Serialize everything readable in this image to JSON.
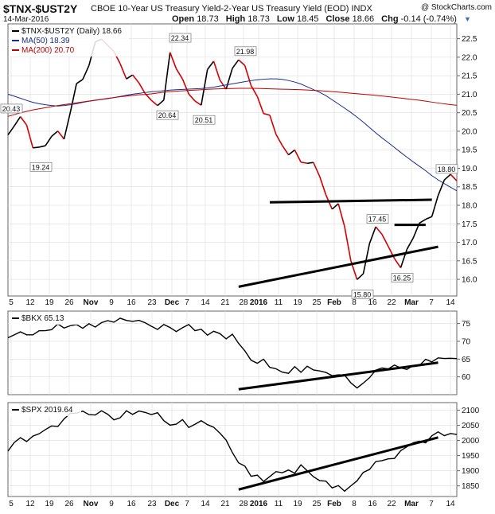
{
  "header": {
    "title": "$TNX-$UST2Y",
    "description": "CBOE 10-Year US Treasury Yield-2-Year US Treasury Yield (EOD)",
    "index_tag": "INDX",
    "date": "14-Mar-2016",
    "watermark": "@ StockCharts.com",
    "ohlc": [
      {
        "label": "Open",
        "value": "18.73"
      },
      {
        "label": "High",
        "value": "18.73"
      },
      {
        "label": "Low",
        "value": "18.45"
      },
      {
        "label": "Close",
        "value": "18.66"
      },
      {
        "label": "Chg",
        "value": "-0.14 (-0.74%)"
      }
    ]
  },
  "colors": {
    "price": "#000000",
    "down": "#d40000",
    "ma50": "#1a2c8a",
    "ma200": "#c00000",
    "border": "#666666",
    "grid": "#dddddd",
    "trend": "#000000"
  },
  "x_labels": [
    "5",
    "12",
    "19",
    "26",
    "Nov",
    "9",
    "16",
    "23",
    "Dec",
    "7",
    "14",
    "21",
    "28",
    "2016",
    "11",
    "19",
    "25",
    "Feb",
    "8",
    "16",
    "22",
    "Mar",
    "7",
    "14"
  ],
  "bold_x_labels": [
    "Nov",
    "Dec",
    "2016",
    "Feb",
    "Mar"
  ],
  "chart_data": [
    {
      "type": "line",
      "title": "$TNX-$UST2Y (Daily)",
      "title_value": "18.66",
      "yticks": [
        16.0,
        16.5,
        17.0,
        17.5,
        18.0,
        18.5,
        19.0,
        19.5,
        20.0,
        20.5,
        21.0,
        21.5,
        22.0,
        22.5
      ],
      "ylim": [
        15.55,
        22.9
      ],
      "series": [
        {
          "name": "$TNX-$UST2Y (Daily)",
          "values": [
            19.9,
            20.05,
            20.3,
            20.43,
            20.2,
            19.8,
            19.24,
            19.65,
            19.6,
            19.65,
            20.05,
            20.0,
            19.7,
            20.05,
            20.8,
            21.3,
            21.35,
            21.5,
            21.9,
            22.4,
            22.55,
            22.4,
            22.3,
            22.2,
            21.85,
            21.8,
            21.35,
            21.6,
            21.25,
            21.35,
            21.0,
            20.85,
            20.8,
            20.64,
            20.8,
            22.34,
            21.8,
            21.65,
            21.45,
            21.1,
            20.9,
            20.8,
            20.51,
            21.5,
            21.8,
            21.9,
            21.45,
            21.2,
            21.1,
            21.7,
            21.9,
            21.98,
            21.7,
            21.25,
            21.05,
            20.8,
            20.4,
            20.5,
            20.1,
            19.75,
            19.6,
            19.4,
            19.25,
            19.65,
            19.15,
            19.0,
            19.4,
            19.05,
            18.8,
            18.45,
            18.05,
            17.85,
            18.1,
            17.7,
            17.15,
            16.4,
            16.05,
            15.8,
            16.4,
            17.0,
            17.45,
            17.35,
            17.15,
            16.9,
            16.6,
            16.5,
            16.25,
            16.8,
            16.9,
            17.35,
            17.55,
            17.65,
            17.5,
            17.85,
            18.3,
            18.6,
            18.9,
            18.8,
            18.66
          ]
        },
        {
          "name": "MA(50)",
          "label_value": "18.39",
          "values": [
            21.0,
            20.93,
            20.85,
            20.78,
            20.73,
            20.7,
            20.68,
            20.7,
            20.73,
            20.78,
            20.82,
            20.85,
            20.88,
            20.92,
            20.96,
            21.0,
            21.03,
            21.06,
            21.08,
            21.1,
            21.12,
            21.13,
            21.14,
            21.15,
            21.17,
            21.2,
            21.24,
            21.28,
            21.32,
            21.36,
            21.39,
            21.41,
            21.42,
            21.4,
            21.36,
            21.3,
            21.2,
            21.1,
            21.0,
            20.85,
            20.7,
            20.55,
            20.38,
            20.2,
            20.0,
            19.82,
            19.65,
            19.47,
            19.3,
            19.13,
            18.98,
            18.8,
            18.65,
            18.52,
            18.39
          ]
        },
        {
          "name": "MA(200)",
          "label_value": "20.70",
          "values": [
            20.4,
            20.5,
            20.58,
            20.64,
            20.7,
            20.75,
            20.8,
            20.85,
            20.9,
            20.94,
            20.98,
            21.0,
            21.05,
            21.08,
            21.1,
            21.12,
            21.14,
            21.15,
            21.16,
            21.16,
            21.15,
            21.14,
            21.13,
            21.12,
            21.1,
            21.08,
            21.05,
            21.02,
            20.99,
            20.96,
            20.92,
            20.88,
            20.84,
            20.79,
            20.74,
            20.7
          ]
        }
      ],
      "annotations": [
        "20.43",
        "19.24",
        "22.34",
        "20.64",
        "20.51",
        "21.98",
        "17.45",
        "15.80",
        "16.25",
        "18.80"
      ],
      "trendlines": [
        {
          "from": [
            42,
            18.08
          ],
          "to": [
            68,
            18.15
          ]
        },
        {
          "from": [
            62,
            17.47
          ],
          "to": [
            67,
            17.47
          ]
        },
        {
          "from": [
            37,
            15.8
          ],
          "to": [
            69,
            16.88
          ]
        }
      ]
    },
    {
      "type": "line",
      "title": "$BKX",
      "title_value": "65.13",
      "yticks": [
        60,
        65,
        70,
        75
      ],
      "ylim": [
        55,
        78.5
      ],
      "series": [
        {
          "name": "$BKX",
          "values": [
            71,
            72,
            71.5,
            73,
            72,
            71,
            72.5,
            73,
            72.5,
            74,
            73,
            75,
            74,
            73.5,
            74.5,
            75,
            74,
            73.5,
            75,
            74,
            74,
            75.5,
            76,
            75.2,
            75.5,
            76.5,
            75.8,
            76,
            75.5,
            76,
            75.5,
            75,
            74.2,
            73,
            74,
            75,
            74,
            73,
            72.5,
            74,
            75,
            74,
            72.5,
            73.5,
            71.5,
            72,
            73,
            72.5,
            71,
            70.5,
            72,
            70,
            68.5,
            67,
            65,
            63,
            64.5,
            65,
            62.5,
            63,
            62,
            61.5,
            60,
            62,
            63,
            61,
            62,
            63.5,
            62,
            61,
            62.5,
            61,
            60,
            61.5,
            60,
            60.5,
            59.5,
            56.5,
            57,
            58,
            59.5,
            60,
            62,
            63,
            61.5,
            62.5,
            63.5,
            62,
            63,
            62,
            63.5,
            62.5,
            63.5,
            65,
            64,
            64.5,
            65.5,
            65.5,
            64,
            66,
            65.13
          ]
        }
      ],
      "trendlines": [
        {
          "from": [
            37,
            56.5
          ],
          "to": [
            69,
            64
          ]
        }
      ]
    },
    {
      "type": "line",
      "title": "$SPX",
      "title_value": "2019.64",
      "yticks": [
        1850,
        1900,
        1950,
        2000,
        2050,
        2100
      ],
      "ylim": [
        1815,
        2125
      ],
      "series": [
        {
          "name": "$SPX",
          "values": [
            1965,
            1990,
            2000,
            2015,
            1995,
            2010,
            2030,
            2015,
            2040,
            2050,
            2035,
            2060,
            2075,
            2090,
            2085,
            2100,
            2095,
            2085,
            2080,
            2095,
            2100,
            2085,
            2070,
            2060,
            2090,
            2100,
            2085,
            2095,
            2100,
            2090,
            2085,
            2100,
            2075,
            2060,
            2050,
            2045,
            2080,
            2060,
            2040,
            2050,
            2070,
            2060,
            2050,
            2045,
            2030,
            2015,
            1995,
            1960,
            1920,
            1940,
            1900,
            1880,
            1890,
            1870,
            1860,
            1885,
            1900,
            1880,
            1910,
            1900,
            1890,
            1925,
            1910,
            1895,
            1880,
            1870,
            1860,
            1870,
            1840,
            1855,
            1835,
            1830,
            1855,
            1865,
            1880,
            1915,
            1900,
            1930,
            1940,
            1920,
            1950,
            1940,
            1960,
            1985,
            1975,
            1995,
            2000,
            1985,
            2000,
            2020,
            2030,
            2010,
            2025,
            2022,
            2019.64
          ]
        }
      ],
      "trendlines": [
        {
          "from": [
            37,
            1838
          ],
          "to": [
            69,
            2010
          ]
        }
      ]
    }
  ]
}
